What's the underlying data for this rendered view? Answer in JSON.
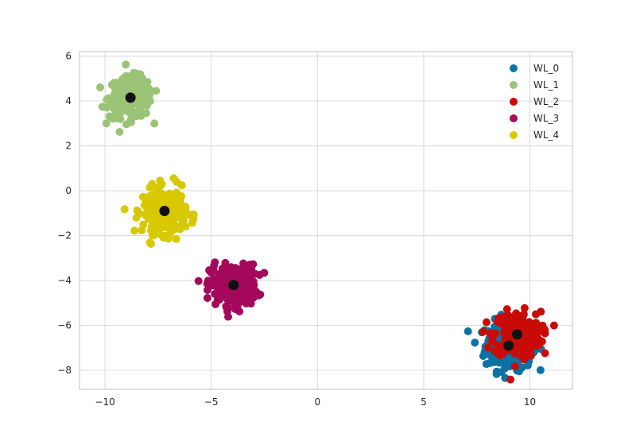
{
  "chart_data": {
    "type": "scatter",
    "title": "",
    "xlabel": "",
    "ylabel": "",
    "xlim": [
      -11.2,
      12
    ],
    "ylim": [
      -8.85,
      6.2
    ],
    "xticks": [
      -10,
      -5,
      0,
      5,
      10
    ],
    "yticks": [
      -8,
      -6,
      -4,
      -2,
      0,
      2,
      4,
      6
    ],
    "xtick_labels": [
      "−10",
      "−5",
      "0",
      "5",
      "10"
    ],
    "ytick_labels": [
      "−8",
      "−6",
      "−4",
      "−2",
      "0",
      "2",
      "4",
      "6"
    ],
    "grid": true,
    "legend_position": "top-right",
    "series": [
      {
        "name": "WL_0",
        "color": "#0b72a3",
        "center": [
          9.0,
          -6.9
        ],
        "spread": [
          0.55,
          0.55
        ],
        "n_points": 260
      },
      {
        "name": "WL_1",
        "color": "#9ac376",
        "center": [
          -8.8,
          4.15
        ],
        "spread": [
          0.5,
          0.45
        ],
        "n_points": 260
      },
      {
        "name": "WL_2",
        "color": "#c90b07",
        "center": [
          9.4,
          -6.4
        ],
        "spread": [
          0.55,
          0.5
        ],
        "n_points": 260
      },
      {
        "name": "WL_3",
        "color": "#a3085b",
        "center": [
          -3.95,
          -4.2
        ],
        "spread": [
          0.55,
          0.45
        ],
        "n_points": 260
      },
      {
        "name": "WL_4",
        "color": "#d7c800",
        "center": [
          -7.2,
          -0.9
        ],
        "spread": [
          0.5,
          0.5
        ],
        "n_points": 260
      }
    ],
    "centroids": {
      "color": "#111111",
      "points": [
        [
          9.0,
          -6.9
        ],
        [
          -8.8,
          4.15
        ],
        [
          9.4,
          -6.4
        ],
        [
          -3.95,
          -4.2
        ],
        [
          -7.2,
          -0.9
        ]
      ]
    }
  }
}
